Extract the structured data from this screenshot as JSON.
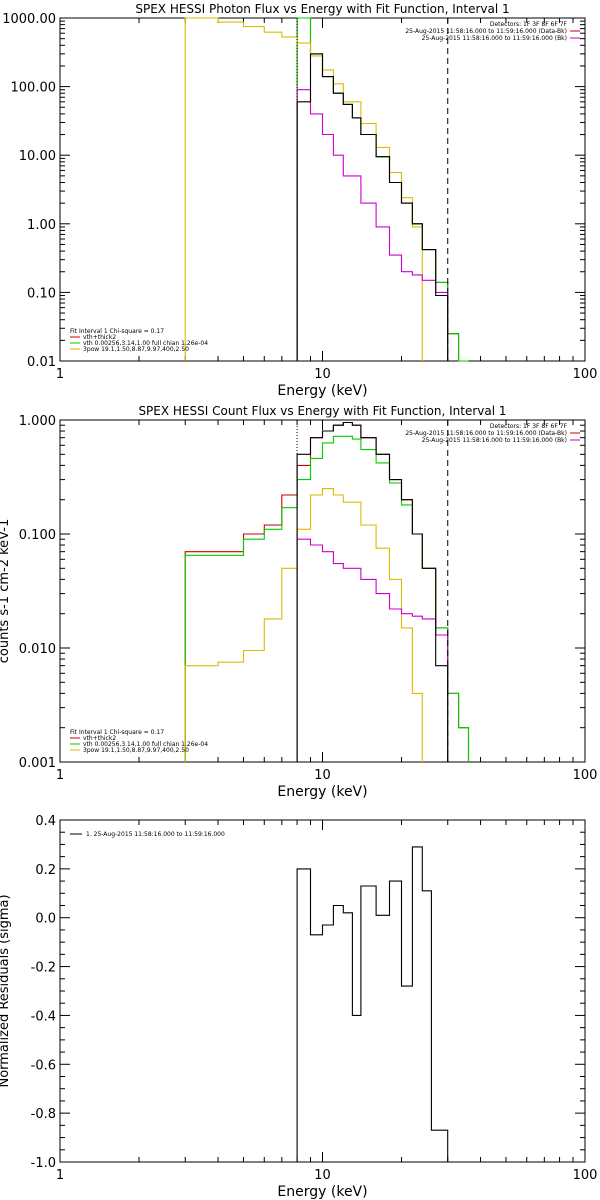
{
  "chart_data": [
    {
      "type": "line",
      "title": "SPEX HESSI Photon Flux vs Energy with Fit Function, Interval 1",
      "xlabel": "Energy (keV)",
      "ylabel": "",
      "xscale": "log",
      "yscale": "log",
      "xlim": [
        1,
        100
      ],
      "ylim": [
        0.01,
        1000
      ],
      "xticks": [
        "1",
        "10",
        "100"
      ],
      "yticks": [
        "0.01",
        "0.10",
        "1.00",
        "10.00",
        "100.00",
        "1000.00"
      ],
      "info_lines": [
        "Detectors: 1F 3F 8F 6F 7F",
        "25-Aug-2015 11:58:16.000 to 11:59:16.000 (Data-Bk)",
        "25-Aug-2015 11:58:16.000 to 11:59:16.000 (Bk)"
      ],
      "legend": [
        "Fit Interval 1    Chi-square = 0.17",
        "vth+thick2",
        "vth 0.00256,3.14,1.00  full chian 1.26e-04",
        "3pow 19.1,1.50,8.87,9.97,400,2.50"
      ],
      "vlines": [
        8.0,
        30.0
      ],
      "series": [
        {
          "name": "vth+thick2",
          "color": "#cc0000",
          "step": true,
          "x": [
            8.0,
            9.0,
            10.0,
            11.0,
            12.0,
            13.0,
            14.0,
            16.0,
            18.0,
            20.0,
            22.0,
            24.0,
            27.0,
            30.0,
            33.0
          ],
          "y": [
            1000,
            300,
            140,
            80,
            55,
            35,
            20,
            9.5,
            4.0,
            2.0,
            1.0,
            0.42,
            0.14,
            0.025,
            0.01
          ]
        },
        {
          "name": "vth 0.00256,3.14,1.00  full chian 1.26e-04",
          "color": "#00cc00",
          "step": true,
          "x": [
            8.0,
            9.0,
            10.0,
            11.0,
            12.0,
            13.0,
            14.0,
            16.0,
            18.0,
            20.0,
            22.0,
            24.0,
            27.0,
            30.0,
            33.0,
            36.0
          ],
          "y": [
            1000,
            300,
            140,
            80,
            55,
            35,
            20,
            9.5,
            4.0,
            2.0,
            1.0,
            0.42,
            0.14,
            0.025,
            0.01,
            0.01
          ]
        },
        {
          "name": "3pow 19.1,1.50,8.87,9.97,400,2.50",
          "color": "#ddbb00",
          "step": true,
          "x": [
            3.0,
            4.0,
            5.0,
            6.0,
            7.0,
            8.0,
            9.0,
            10.0,
            11.0,
            12.0,
            14.0,
            16.0,
            18.0,
            20.0,
            22.0,
            24.0
          ],
          "y": [
            1000,
            870,
            750,
            620,
            530,
            430,
            280,
            175,
            110,
            60,
            29,
            13,
            5.6,
            2.4,
            0.9,
            0.3
          ]
        },
        {
          "name": "Bk",
          "color": "#cc00cc",
          "step": true,
          "x": [
            8.0,
            9.0,
            10.0,
            11.0,
            12.0,
            14.0,
            16.0,
            18.0,
            20.0,
            22.0,
            24.0,
            27.0,
            30.0
          ],
          "y": [
            90,
            40,
            20,
            10,
            5.0,
            2.0,
            0.9,
            0.35,
            0.2,
            0.18,
            0.15,
            0.1,
            0.01
          ]
        },
        {
          "name": "Data-Bk",
          "color": "#000000",
          "step": true,
          "x": [
            8.0,
            9.0,
            10.0,
            11.0,
            12.0,
            13.0,
            14.0,
            16.0,
            18.0,
            20.0,
            22.0,
            24.0,
            27.0,
            30.0
          ],
          "y": [
            60,
            300,
            140,
            80,
            55,
            35,
            20,
            9.5,
            4.0,
            2.0,
            1.0,
            0.42,
            0.09,
            0.025
          ]
        }
      ]
    },
    {
      "type": "line",
      "title": "SPEX HESSI Count Flux vs Energy with Fit Function, Interval 1",
      "xlabel": "Energy (keV)",
      "ylabel": "counts s-1 cm-2 keV-1",
      "xscale": "log",
      "yscale": "log",
      "xlim": [
        1,
        100
      ],
      "ylim": [
        0.001,
        1
      ],
      "xticks": [
        "1",
        "10",
        "100"
      ],
      "yticks": [
        "0.001",
        "0.010",
        "0.100",
        "1.000"
      ],
      "info_lines": [
        "Detectors: 1F 3F 8F 6F 7F",
        "25-Aug-2015 11:58:16.000 to 11:59:16.000 (Data-Bk)",
        "25-Aug-2015 11:58:16.000 to 11:59:16.000 (Bk)"
      ],
      "legend": [
        "Fit Interval 1    Chi-square = 0.17",
        "vth+thick2",
        "vth 0.00256,3.14,1.00  full chian 1.26e-04",
        "3pow 19.1,1.50,8.87,9.97,400,2.50"
      ],
      "vlines": [
        8.0,
        30.0
      ],
      "series": [
        {
          "name": "vth+thick2",
          "color": "#cc0000",
          "step": true,
          "x": [
            3.0,
            4.0,
            5.0,
            6.0,
            7.0,
            8.0,
            9.0,
            10.0,
            11.0,
            12.0,
            13.0,
            14.0,
            16.0,
            18.0,
            20.0,
            22.0,
            24.0,
            27.0,
            30.0,
            33.0,
            36.0
          ],
          "y": [
            0.07,
            0.07,
            0.1,
            0.12,
            0.22,
            0.4,
            0.7,
            0.8,
            0.9,
            0.95,
            0.9,
            0.7,
            0.5,
            0.3,
            0.2,
            0.1,
            0.05,
            0.015,
            0.004,
            0.002,
            0.001
          ]
        },
        {
          "name": "vth 0.00256,3.14,1.00  full chian 1.26e-04",
          "color": "#00cc00",
          "step": true,
          "x": [
            3.0,
            4.0,
            5.0,
            6.0,
            7.0,
            8.0,
            9.0,
            10.0,
            11.0,
            12.0,
            13.0,
            14.0,
            16.0,
            18.0,
            20.0,
            22.0,
            24.0,
            27.0,
            30.0,
            33.0,
            36.0
          ],
          "y": [
            0.065,
            0.065,
            0.09,
            0.11,
            0.17,
            0.3,
            0.46,
            0.63,
            0.72,
            0.72,
            0.68,
            0.55,
            0.42,
            0.28,
            0.18,
            0.1,
            0.05,
            0.015,
            0.004,
            0.002,
            0.001
          ]
        },
        {
          "name": "3pow 19.1,1.50,8.87,9.97,400,2.50",
          "color": "#ddbb00",
          "step": true,
          "x": [
            3.0,
            4.0,
            5.0,
            6.0,
            7.0,
            8.0,
            9.0,
            10.0,
            11.0,
            12.0,
            14.0,
            16.0,
            18.0,
            20.0,
            22.0,
            24.0
          ],
          "y": [
            0.007,
            0.0075,
            0.0095,
            0.018,
            0.05,
            0.11,
            0.22,
            0.25,
            0.22,
            0.19,
            0.12,
            0.075,
            0.04,
            0.015,
            0.004,
            0.0017
          ]
        },
        {
          "name": "Bk",
          "color": "#cc00cc",
          "step": true,
          "x": [
            8.0,
            9.0,
            10.0,
            11.0,
            12.0,
            14.0,
            16.0,
            18.0,
            20.0,
            22.0,
            24.0,
            27.0,
            30.0
          ],
          "y": [
            0.09,
            0.08,
            0.07,
            0.055,
            0.05,
            0.04,
            0.03,
            0.022,
            0.02,
            0.019,
            0.018,
            0.013,
            0.001
          ]
        },
        {
          "name": "Data-Bk",
          "color": "#000000",
          "step": true,
          "x": [
            8.0,
            9.0,
            10.0,
            11.0,
            12.0,
            13.0,
            14.0,
            16.0,
            18.0,
            20.0,
            22.0,
            24.0,
            27.0,
            30.0
          ],
          "y": [
            0.5,
            0.7,
            0.8,
            0.9,
            0.95,
            0.9,
            0.7,
            0.5,
            0.3,
            0.2,
            0.1,
            0.05,
            0.007,
            0.003
          ]
        }
      ]
    },
    {
      "type": "line",
      "title": "",
      "xlabel": "Energy (keV)",
      "ylabel": "Normalized Residuals (sigma)",
      "xscale": "log",
      "yscale": "linear",
      "xlim": [
        1,
        100
      ],
      "ylim": [
        -1.0,
        0.4
      ],
      "xticks": [
        "1",
        "10",
        "100"
      ],
      "yticks": [
        "-1.0",
        "-0.8",
        "-0.6",
        "-0.4",
        "-0.2",
        "0.0",
        "0.2",
        "0.4"
      ],
      "legend": [
        "1. 25-Aug-2015 11:58:16.000 to 11:59:16.000"
      ],
      "series": [
        {
          "name": "1. 25-Aug-2015 11:58:16.000 to 11:59:16.000",
          "color": "#000000",
          "step": true,
          "x": [
            8.0,
            9.0,
            10.0,
            11.0,
            12.0,
            13.0,
            14.0,
            16.0,
            18.0,
            20.0,
            22.0,
            24.0,
            26.0,
            28.0,
            30.0
          ],
          "y": [
            0.2,
            -0.07,
            -0.03,
            0.05,
            0.02,
            -0.4,
            0.13,
            0.01,
            0.15,
            -0.28,
            0.29,
            0.11,
            -0.87,
            -0.87,
            -0.87
          ]
        }
      ]
    }
  ]
}
